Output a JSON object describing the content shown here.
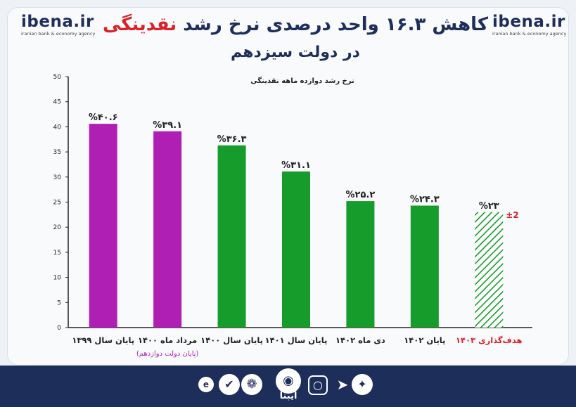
{
  "header": {
    "logo_text": "ibena.ir",
    "logo_sub": "iranian bank & economy agency",
    "title_part1": "کاهش ۱۶.۳ واحد درصدی نرخ رشد ",
    "title_part2": "نقدینگی",
    "title_line2": "در دولت سیزدهم",
    "colors": {
      "navy": "#1e2e5a",
      "red": "#d8232a"
    }
  },
  "chart_data": {
    "type": "bar",
    "subtitle": "نرخ رشد دوازده ماهه نقدینگی",
    "y_ticks": [
      "0",
      "5",
      "10",
      "15",
      "20",
      "25",
      "30",
      "35",
      "40",
      "45",
      "50"
    ],
    "ylim": [
      0,
      50
    ],
    "grid": false,
    "categories": [
      "پایان سال ۱۳۹۹",
      "مرداد ماه ۱۴۰۰",
      "پایان سال ۱۴۰۰",
      "پایان سال ۱۴۰۱",
      "دی ماه ۱۴۰۲",
      "پایان ۱۴۰۲",
      "هدف‌گذاری ۱۴۰۳"
    ],
    "category_notes": [
      "",
      "(پایان دولت دوازدهم)",
      "",
      "",
      "",
      "",
      ""
    ],
    "values": [
      40.6,
      39.1,
      36.3,
      31.1,
      25.2,
      24.3,
      23
    ],
    "value_labels": [
      "%۴۰.۶",
      "%۳۹.۱",
      "%۳۶.۳",
      "%۳۱.۱",
      "%۲۵.۲",
      "%۲۴.۳",
      "%۲۳"
    ],
    "colors": [
      "#b01fb4",
      "#b01fb4",
      "#169c2b",
      "#169c2b",
      "#169c2b",
      "#169c2b",
      "#169c2b"
    ],
    "hatched": [
      false,
      false,
      false,
      false,
      false,
      false,
      true
    ],
    "target_tolerance": "±2",
    "label_colors": {
      "normal": "#222222",
      "note": "#b01fb4",
      "target": "#d8232a"
    }
  },
  "footer": {
    "brand": "ایبنا",
    "icons": [
      "twitter-icon",
      "telegram-icon",
      "instagram-icon",
      "ibena-broadcast-icon",
      "aparat-icon",
      "verified-icon",
      "eitaa-icon"
    ]
  }
}
